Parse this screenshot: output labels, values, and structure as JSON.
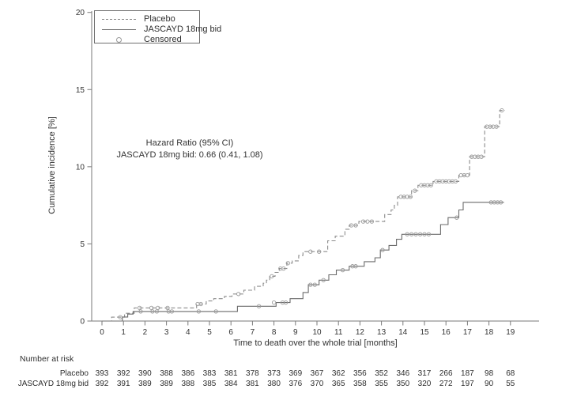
{
  "figure": {
    "y_axis_label": "Cumulative incidence [%]",
    "x_axis_label": "Time to death over the whole trial [months]",
    "legend": {
      "items": [
        {
          "label": "Placebo",
          "style": "dashed-line"
        },
        {
          "label": "JASCAYD 18mg bid",
          "style": "solid-line"
        },
        {
          "label": "Censored",
          "style": "circle-marker"
        }
      ]
    },
    "annotation": {
      "line1": "Hazard Ratio (95% CI)",
      "line2": "JASCAYD 18mg bid: 0.66 (0.41, 1.08)"
    }
  },
  "chart_data": {
    "type": "line",
    "subtype": "cumulative-incidence-step-curves",
    "xlabel": "Time to death over the whole trial [months]",
    "ylabel": "Cumulative incidence [%]",
    "xlim": [
      0,
      19
    ],
    "ylim": [
      0,
      20
    ],
    "x_ticks": [
      0,
      1,
      2,
      3,
      4,
      5,
      6,
      7,
      8,
      9,
      10,
      11,
      12,
      13,
      14,
      15,
      16,
      17,
      18,
      19
    ],
    "y_ticks": [
      0,
      5,
      10,
      15,
      20
    ],
    "grid": false,
    "legend_position": "top-left-inside",
    "colors": {
      "placebo": "#8c8c8c",
      "jascayd": "#6b6b6b",
      "censored": "#9a9a9a",
      "axis": "#7a7a7a",
      "text": "#333333"
    },
    "hazard_ratio": {
      "label": "Hazard Ratio (95% CI)",
      "value": "JASCAYD 18mg bid: 0.66 (0.41, 1.08)"
    },
    "series": [
      {
        "name": "Placebo",
        "line": "dashed",
        "end_month": 18.75,
        "step_points": [
          [
            0.45,
            0.25
          ],
          [
            1.05,
            0.5
          ],
          [
            1.5,
            0.85
          ],
          [
            4.4,
            1.1
          ],
          [
            4.85,
            1.3
          ],
          [
            5.2,
            1.45
          ],
          [
            5.7,
            1.6
          ],
          [
            6.05,
            1.75
          ],
          [
            6.6,
            2.0
          ],
          [
            7.1,
            2.25
          ],
          [
            7.5,
            2.45
          ],
          [
            7.65,
            2.65
          ],
          [
            7.8,
            2.9
          ],
          [
            8.05,
            3.15
          ],
          [
            8.25,
            3.4
          ],
          [
            8.6,
            3.75
          ],
          [
            8.85,
            3.9
          ],
          [
            9.15,
            4.25
          ],
          [
            9.35,
            4.5
          ],
          [
            10.5,
            5.2
          ],
          [
            10.85,
            5.5
          ],
          [
            11.3,
            5.95
          ],
          [
            11.5,
            6.2
          ],
          [
            11.95,
            6.45
          ],
          [
            13.15,
            6.9
          ],
          [
            13.45,
            7.2
          ],
          [
            13.6,
            7.5
          ],
          [
            13.75,
            8.05
          ],
          [
            14.4,
            8.45
          ],
          [
            14.7,
            8.8
          ],
          [
            15.4,
            9.05
          ],
          [
            16.6,
            9.45
          ],
          [
            17.1,
            10.65
          ],
          [
            17.8,
            12.6
          ],
          [
            18.5,
            13.65
          ]
        ],
        "censored": [
          [
            0.85,
            0.25
          ],
          [
            1.75,
            0.85
          ],
          [
            2.3,
            0.85
          ],
          [
            2.6,
            0.85
          ],
          [
            3.05,
            0.85
          ],
          [
            4.45,
            1.1
          ],
          [
            4.6,
            1.1
          ],
          [
            6.35,
            1.75
          ],
          [
            7.9,
            2.9
          ],
          [
            8.3,
            3.4
          ],
          [
            8.45,
            3.4
          ],
          [
            8.65,
            3.75
          ],
          [
            9.7,
            4.5
          ],
          [
            10.1,
            4.5
          ],
          [
            11.6,
            6.2
          ],
          [
            11.8,
            6.2
          ],
          [
            12.15,
            6.45
          ],
          [
            12.35,
            6.45
          ],
          [
            12.55,
            6.45
          ],
          [
            13.9,
            8.05
          ],
          [
            14.05,
            8.05
          ],
          [
            14.2,
            8.05
          ],
          [
            14.35,
            8.05
          ],
          [
            14.55,
            8.45
          ],
          [
            14.85,
            8.8
          ],
          [
            15.0,
            8.8
          ],
          [
            15.15,
            8.8
          ],
          [
            15.3,
            8.8
          ],
          [
            15.55,
            9.05
          ],
          [
            15.7,
            9.05
          ],
          [
            15.85,
            9.05
          ],
          [
            16.0,
            9.05
          ],
          [
            16.15,
            9.05
          ],
          [
            16.3,
            9.05
          ],
          [
            16.45,
            9.05
          ],
          [
            16.7,
            9.45
          ],
          [
            16.85,
            9.45
          ],
          [
            17.0,
            9.45
          ],
          [
            17.2,
            10.65
          ],
          [
            17.35,
            10.65
          ],
          [
            17.5,
            10.65
          ],
          [
            17.65,
            10.65
          ],
          [
            17.9,
            12.6
          ],
          [
            18.05,
            12.6
          ],
          [
            18.2,
            12.6
          ],
          [
            18.35,
            12.6
          ],
          [
            18.6,
            13.65
          ]
        ]
      },
      {
        "name": "JASCAYD 18mg bid",
        "line": "solid",
        "end_month": 18.7,
        "step_points": [
          [
            0.95,
            0.26
          ],
          [
            1.2,
            0.45
          ],
          [
            1.45,
            0.62
          ],
          [
            6.3,
            0.96
          ],
          [
            8.1,
            1.2
          ],
          [
            8.75,
            1.45
          ],
          [
            9.35,
            1.85
          ],
          [
            9.6,
            2.35
          ],
          [
            10.1,
            2.65
          ],
          [
            10.55,
            3.0
          ],
          [
            10.9,
            3.3
          ],
          [
            11.5,
            3.55
          ],
          [
            12.2,
            3.85
          ],
          [
            12.7,
            4.1
          ],
          [
            12.95,
            4.6
          ],
          [
            13.35,
            4.9
          ],
          [
            13.7,
            5.3
          ],
          [
            13.95,
            5.62
          ],
          [
            15.75,
            6.25
          ],
          [
            16.1,
            6.7
          ],
          [
            16.6,
            7.2
          ],
          [
            16.8,
            7.69
          ]
        ],
        "censored": [
          [
            1.8,
            0.62
          ],
          [
            2.35,
            0.62
          ],
          [
            2.55,
            0.62
          ],
          [
            3.1,
            0.62
          ],
          [
            3.25,
            0.62
          ],
          [
            4.5,
            0.62
          ],
          [
            5.3,
            0.62
          ],
          [
            7.3,
            0.96
          ],
          [
            8.0,
            1.2
          ],
          [
            8.4,
            1.2
          ],
          [
            8.55,
            1.2
          ],
          [
            9.7,
            2.35
          ],
          [
            9.9,
            2.35
          ],
          [
            10.3,
            2.65
          ],
          [
            11.2,
            3.3
          ],
          [
            11.65,
            3.55
          ],
          [
            11.8,
            3.55
          ],
          [
            13.05,
            4.6
          ],
          [
            14.2,
            5.62
          ],
          [
            14.4,
            5.62
          ],
          [
            14.6,
            5.62
          ],
          [
            14.8,
            5.62
          ],
          [
            15.0,
            5.62
          ],
          [
            15.2,
            5.62
          ],
          [
            16.5,
            6.7
          ],
          [
            18.1,
            7.69
          ],
          [
            18.25,
            7.69
          ],
          [
            18.4,
            7.69
          ],
          [
            18.55,
            7.69
          ]
        ]
      }
    ],
    "number_at_risk": {
      "heading": "Number at risk",
      "rows": [
        {
          "label": "Placebo",
          "values": [
            393,
            392,
            390,
            388,
            386,
            383,
            381,
            378,
            373,
            369,
            367,
            362,
            356,
            352,
            346,
            317,
            266,
            187,
            98,
            68
          ]
        },
        {
          "label": "JASCAYD 18mg bid",
          "values": [
            392,
            391,
            389,
            389,
            388,
            385,
            384,
            381,
            380,
            376,
            370,
            365,
            358,
            355,
            350,
            320,
            272,
            197,
            90,
            55
          ]
        }
      ]
    }
  }
}
